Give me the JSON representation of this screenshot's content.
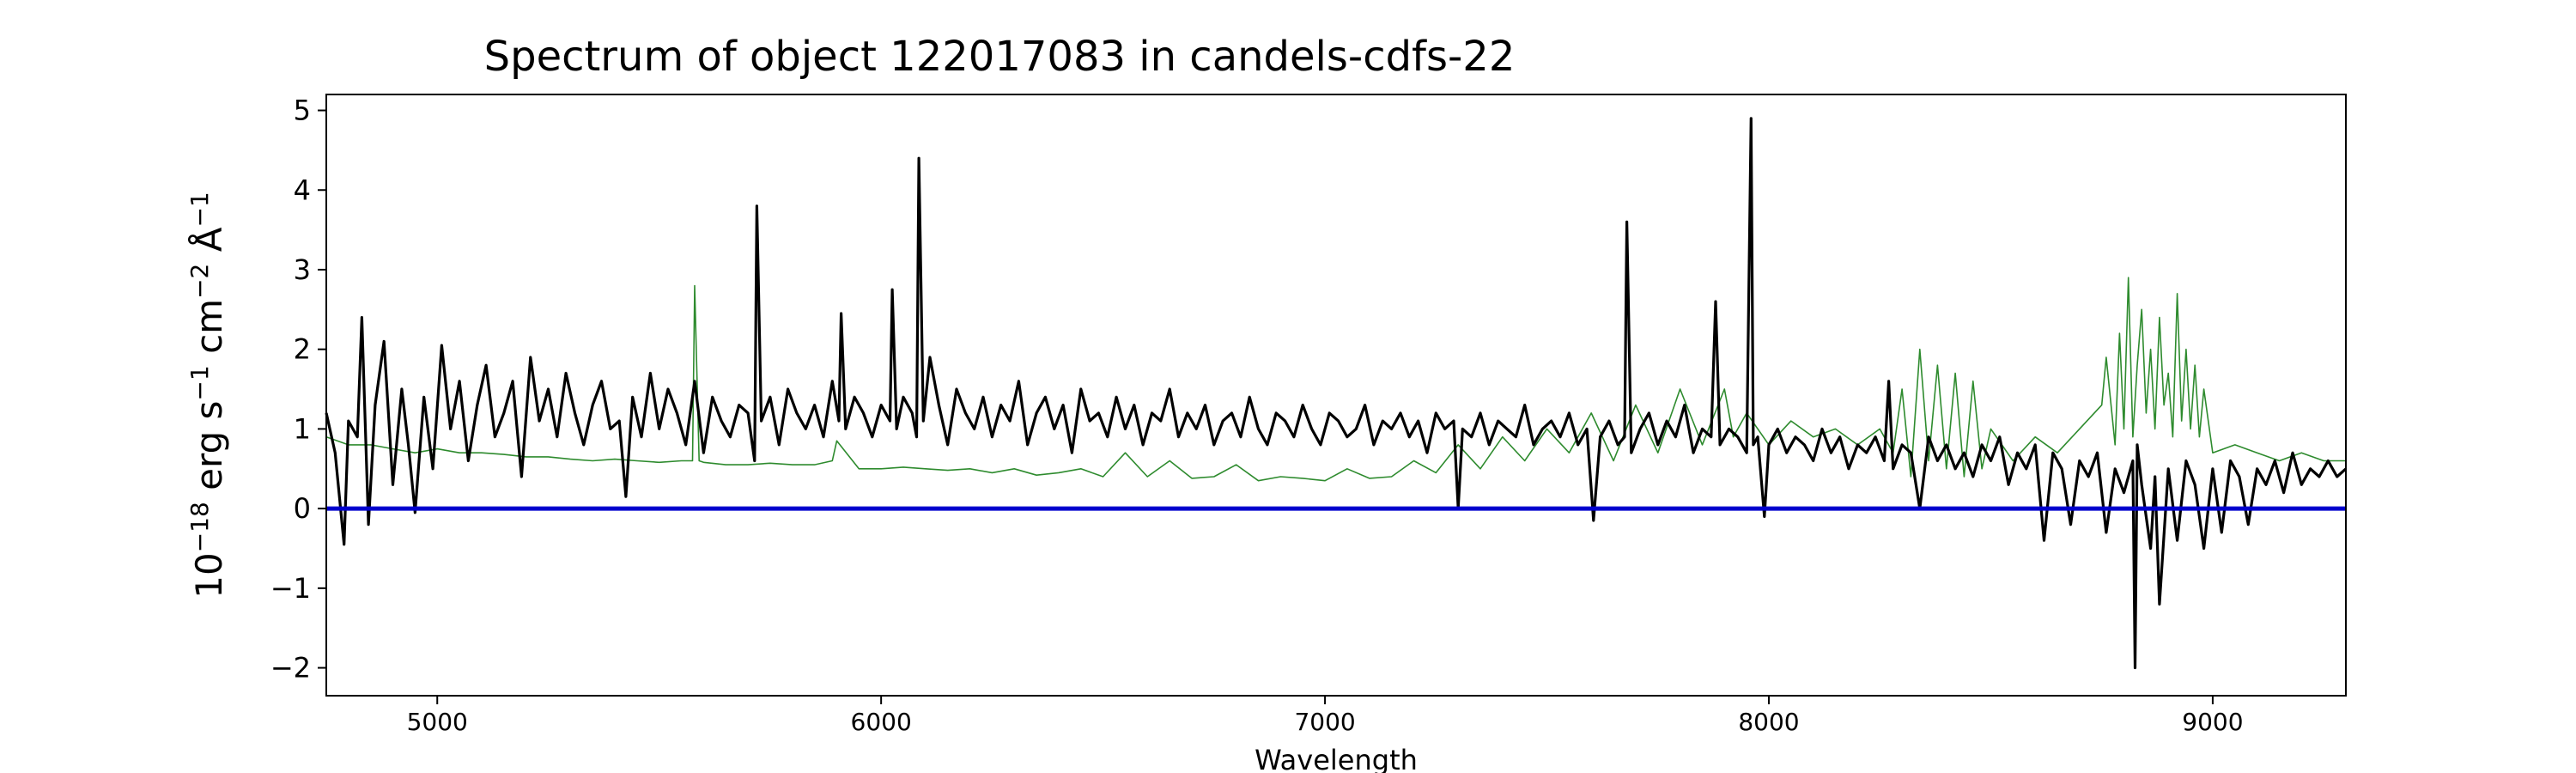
{
  "chart_data": {
    "type": "line",
    "title": "Spectrum of object 122017083 in candels-cdfs-22",
    "xlabel": "Wavelength",
    "ylabel": {
      "base": "10",
      "exp1": "−18",
      "mid1": " erg s",
      "exp2": "−1",
      "mid2": " cm",
      "exp3": "−2",
      "mid3": " Å",
      "exp4": "−1"
    },
    "xlim": [
      4750,
      9300
    ],
    "ylim": [
      -2.35,
      5.2
    ],
    "xticks": [
      5000,
      6000,
      7000,
      8000,
      9000
    ],
    "yticks": [
      -2,
      -1,
      0,
      1,
      2,
      3,
      4,
      5
    ],
    "ytick_labels": [
      "−2",
      "−1",
      "0",
      "1",
      "2",
      "3",
      "4",
      "5"
    ],
    "grid": false,
    "legend": "none",
    "colors": {
      "flux": "#000000",
      "noise": "#2e8b2e",
      "zero": "#0000cd"
    },
    "series": [
      {
        "role": "flux",
        "color": "#000000",
        "x": [
          4750,
          4770,
          4790,
          4800,
          4820,
          4830,
          4845,
          4860,
          4880,
          4900,
          4920,
          4935,
          4950,
          4970,
          4990,
          5010,
          5030,
          5050,
          5070,
          5090,
          5110,
          5130,
          5150,
          5170,
          5190,
          5210,
          5230,
          5250,
          5270,
          5290,
          5310,
          5330,
          5350,
          5370,
          5390,
          5410,
          5425,
          5440,
          5460,
          5480,
          5500,
          5520,
          5540,
          5560,
          5580,
          5600,
          5620,
          5640,
          5660,
          5680,
          5700,
          5715,
          5720,
          5730,
          5750,
          5770,
          5790,
          5810,
          5830,
          5850,
          5870,
          5890,
          5905,
          5910,
          5920,
          5940,
          5960,
          5980,
          6000,
          6020,
          6025,
          6035,
          6050,
          6070,
          6080,
          6085,
          6095,
          6110,
          6130,
          6150,
          6170,
          6190,
          6210,
          6230,
          6250,
          6270,
          6290,
          6310,
          6330,
          6350,
          6370,
          6390,
          6410,
          6430,
          6450,
          6470,
          6490,
          6510,
          6530,
          6550,
          6570,
          6590,
          6610,
          6630,
          6650,
          6670,
          6690,
          6710,
          6730,
          6750,
          6770,
          6790,
          6810,
          6830,
          6850,
          6870,
          6890,
          6910,
          6930,
          6950,
          6970,
          6990,
          7010,
          7030,
          7050,
          7070,
          7090,
          7110,
          7130,
          7150,
          7170,
          7190,
          7210,
          7230,
          7250,
          7270,
          7290,
          7300,
          7310,
          7330,
          7350,
          7370,
          7390,
          7410,
          7430,
          7450,
          7470,
          7490,
          7510,
          7530,
          7550,
          7570,
          7590,
          7605,
          7620,
          7640,
          7660,
          7675,
          7680,
          7690,
          7710,
          7730,
          7750,
          7770,
          7790,
          7810,
          7830,
          7850,
          7870,
          7880,
          7890,
          7910,
          7930,
          7950,
          7960,
          7965,
          7975,
          7990,
          8000,
          8020,
          8040,
          8060,
          8080,
          8100,
          8120,
          8140,
          8160,
          8180,
          8200,
          8220,
          8240,
          8260,
          8270,
          8280,
          8300,
          8320,
          8340,
          8360,
          8380,
          8400,
          8420,
          8440,
          8460,
          8480,
          8500,
          8520,
          8540,
          8560,
          8580,
          8600,
          8620,
          8640,
          8660,
          8680,
          8700,
          8720,
          8740,
          8760,
          8780,
          8800,
          8820,
          8825,
          8830,
          8840,
          8860,
          8870,
          8880,
          8900,
          8920,
          8940,
          8960,
          8980,
          9000,
          9020,
          9040,
          9060,
          9080,
          9100,
          9120,
          9140,
          9160,
          9180,
          9200,
          9220,
          9240,
          9260,
          9280,
          9300
        ],
        "y": [
          1.2,
          0.7,
          -0.45,
          1.1,
          0.9,
          2.4,
          -0.2,
          1.3,
          2.1,
          0.3,
          1.5,
          0.8,
          -0.05,
          1.4,
          0.5,
          2.05,
          1.0,
          1.6,
          0.6,
          1.3,
          1.8,
          0.9,
          1.2,
          1.6,
          0.4,
          1.9,
          1.1,
          1.5,
          0.9,
          1.7,
          1.2,
          0.8,
          1.3,
          1.6,
          1.0,
          1.1,
          0.15,
          1.4,
          0.9,
          1.7,
          1.0,
          1.5,
          1.2,
          0.8,
          1.6,
          0.7,
          1.4,
          1.1,
          0.9,
          1.3,
          1.2,
          0.6,
          3.8,
          1.1,
          1.4,
          0.8,
          1.5,
          1.2,
          1.0,
          1.3,
          0.9,
          1.6,
          1.1,
          2.45,
          1.0,
          1.4,
          1.2,
          0.9,
          1.3,
          1.1,
          2.75,
          1.0,
          1.4,
          1.2,
          0.9,
          4.4,
          1.1,
          1.9,
          1.3,
          0.8,
          1.5,
          1.2,
          1.0,
          1.4,
          0.9,
          1.3,
          1.1,
          1.6,
          0.8,
          1.2,
          1.4,
          1.0,
          1.3,
          0.7,
          1.5,
          1.1,
          1.2,
          0.9,
          1.4,
          1.0,
          1.3,
          0.8,
          1.2,
          1.1,
          1.5,
          0.9,
          1.2,
          1.0,
          1.3,
          0.8,
          1.1,
          1.2,
          0.9,
          1.4,
          1.0,
          0.8,
          1.2,
          1.1,
          0.9,
          1.3,
          1.0,
          0.8,
          1.2,
          1.1,
          0.9,
          1.0,
          1.3,
          0.8,
          1.1,
          1.0,
          1.2,
          0.9,
          1.1,
          0.7,
          1.2,
          1.0,
          1.1,
          0.0,
          1.0,
          0.9,
          1.2,
          0.8,
          1.1,
          1.0,
          0.9,
          1.3,
          0.8,
          1.0,
          1.1,
          0.9,
          1.2,
          0.8,
          1.0,
          -0.15,
          0.9,
          1.1,
          0.8,
          0.9,
          3.6,
          0.7,
          1.0,
          1.2,
          0.8,
          1.1,
          0.9,
          1.3,
          0.7,
          1.0,
          0.9,
          2.6,
          0.8,
          1.0,
          0.9,
          0.7,
          4.9,
          0.8,
          0.9,
          -0.1,
          0.8,
          1.0,
          0.7,
          0.9,
          0.8,
          0.6,
          1.0,
          0.7,
          0.9,
          0.5,
          0.8,
          0.7,
          0.9,
          0.6,
          1.6,
          0.5,
          0.8,
          0.7,
          0.0,
          0.9,
          0.6,
          0.8,
          0.5,
          0.7,
          0.4,
          0.8,
          0.6,
          0.9,
          0.3,
          0.7,
          0.5,
          0.8,
          -0.4,
          0.7,
          0.5,
          -0.2,
          0.6,
          0.4,
          0.7,
          -0.3,
          0.5,
          0.2,
          0.6,
          -2.0,
          0.8,
          0.3,
          -0.5,
          0.4,
          -1.2,
          0.5,
          -0.4,
          0.6,
          0.3,
          -0.5,
          0.5,
          -0.3,
          0.6,
          0.4,
          -0.2,
          0.5,
          0.3,
          0.6,
          0.2,
          0.7,
          0.3,
          0.5,
          0.4,
          0.6,
          0.4,
          0.5
        ]
      },
      {
        "role": "noise",
        "color": "#2e8b2e",
        "x": [
          4750,
          4800,
          4850,
          4900,
          4950,
          5000,
          5050,
          5100,
          5150,
          5200,
          5250,
          5300,
          5350,
          5400,
          5450,
          5500,
          5550,
          5575,
          5580,
          5590,
          5600,
          5650,
          5700,
          5750,
          5800,
          5850,
          5890,
          5900,
          5950,
          6000,
          6050,
          6100,
          6150,
          6200,
          6250,
          6300,
          6350,
          6400,
          6450,
          6500,
          6550,
          6600,
          6650,
          6700,
          6750,
          6800,
          6850,
          6900,
          6950,
          7000,
          7050,
          7100,
          7150,
          7200,
          7250,
          7300,
          7350,
          7400,
          7450,
          7500,
          7550,
          7600,
          7650,
          7700,
          7750,
          7800,
          7850,
          7900,
          7920,
          7950,
          8000,
          8050,
          8100,
          8150,
          8200,
          8250,
          8280,
          8300,
          8320,
          8340,
          8360,
          8380,
          8400,
          8420,
          8440,
          8460,
          8480,
          8500,
          8550,
          8600,
          8650,
          8700,
          8750,
          8760,
          8780,
          8790,
          8800,
          8810,
          8820,
          8830,
          8840,
          8850,
          8860,
          8870,
          8880,
          8890,
          8900,
          8910,
          8920,
          8930,
          8940,
          8950,
          8960,
          8970,
          8980,
          9000,
          9050,
          9100,
          9150,
          9200,
          9250,
          9300
        ],
        "y": [
          0.9,
          0.8,
          0.8,
          0.75,
          0.7,
          0.75,
          0.7,
          0.7,
          0.68,
          0.65,
          0.65,
          0.62,
          0.6,
          0.62,
          0.6,
          0.58,
          0.6,
          0.6,
          2.8,
          0.6,
          0.58,
          0.55,
          0.55,
          0.57,
          0.55,
          0.55,
          0.6,
          0.85,
          0.5,
          0.5,
          0.52,
          0.5,
          0.48,
          0.5,
          0.45,
          0.5,
          0.42,
          0.45,
          0.5,
          0.4,
          0.7,
          0.4,
          0.6,
          0.38,
          0.4,
          0.55,
          0.35,
          0.4,
          0.38,
          0.35,
          0.5,
          0.38,
          0.4,
          0.6,
          0.45,
          0.8,
          0.5,
          0.9,
          0.6,
          1.0,
          0.7,
          1.2,
          0.6,
          1.3,
          0.7,
          1.5,
          0.8,
          1.5,
          0.9,
          1.2,
          0.8,
          1.1,
          0.9,
          1.0,
          0.8,
          1.0,
          0.7,
          1.5,
          0.4,
          2.0,
          0.6,
          1.8,
          0.5,
          1.7,
          0.4,
          1.6,
          0.5,
          1.0,
          0.6,
          0.9,
          0.7,
          1.0,
          1.3,
          1.9,
          0.8,
          2.2,
          1.0,
          2.9,
          0.9,
          1.8,
          2.5,
          1.2,
          2.0,
          1.0,
          2.4,
          1.3,
          1.7,
          0.9,
          2.7,
          1.1,
          2.0,
          1.0,
          1.8,
          0.9,
          1.5,
          0.7,
          0.8,
          0.7,
          0.6,
          0.7,
          0.6,
          0.6
        ]
      }
    ]
  }
}
